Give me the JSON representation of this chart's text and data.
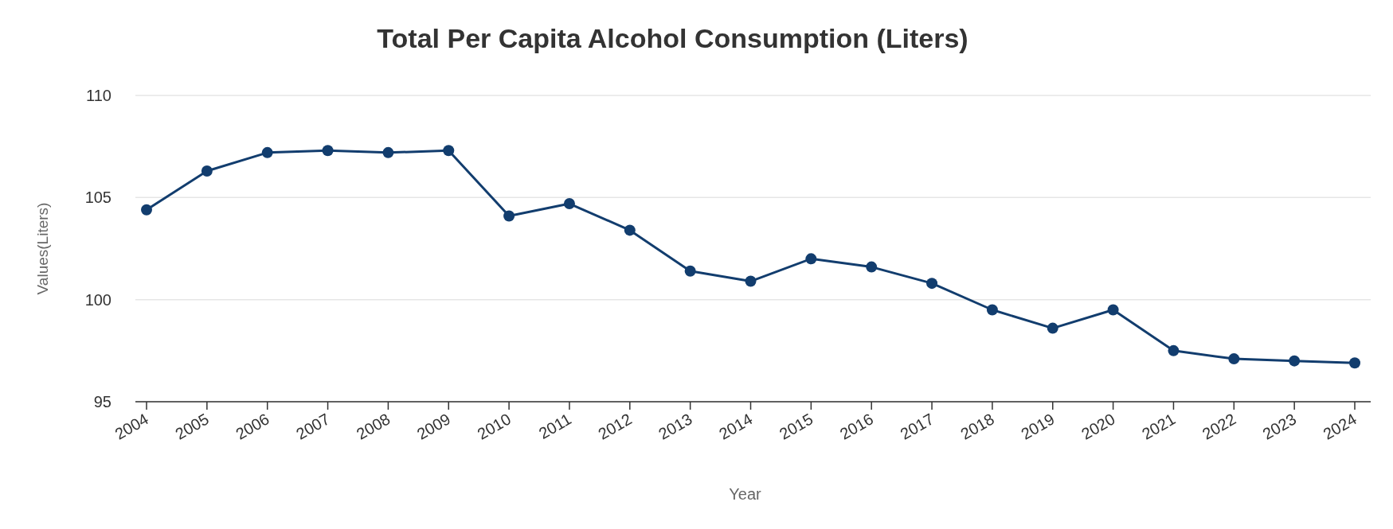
{
  "chart_data": {
    "type": "line",
    "title": "Total Per Capita Alcohol Consumption (Liters)",
    "xlabel": "Year",
    "ylabel": "Values(Liters)",
    "categories": [
      "2004",
      "2005",
      "2006",
      "2007",
      "2008",
      "2009",
      "2010",
      "2011",
      "2012",
      "2013",
      "2014",
      "2015",
      "2016",
      "2017",
      "2018",
      "2019",
      "2020",
      "2021",
      "2022",
      "2023",
      "2024"
    ],
    "series": [
      {
        "color": "#123d6e",
        "values": [
          104.4,
          106.3,
          107.2,
          107.3,
          107.2,
          107.3,
          104.1,
          104.7,
          103.4,
          101.4,
          100.9,
          102.0,
          101.6,
          100.8,
          99.5,
          98.6,
          99.5,
          97.5,
          97.1,
          97.0,
          96.9
        ]
      }
    ],
    "ylim": [
      95,
      110
    ],
    "yticks": [
      95,
      100,
      105,
      110
    ],
    "grid": "y",
    "marker": "circle",
    "line_style": "solid"
  }
}
